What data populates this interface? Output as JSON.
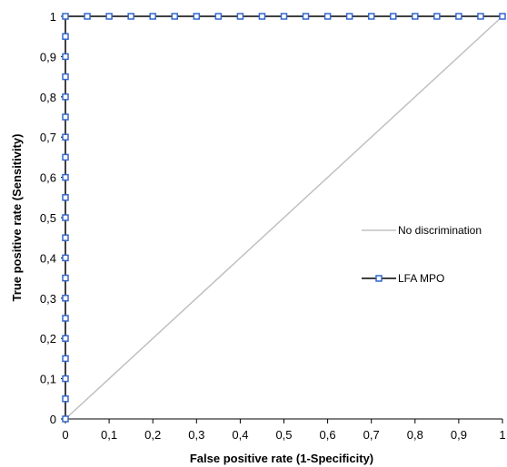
{
  "chart_data": {
    "type": "line",
    "title": "",
    "xlabel": "False positive rate (1-Specificity)",
    "ylabel": "True positive rate (Sensitivity)",
    "xlim": [
      0,
      1
    ],
    "ylim": [
      0,
      1
    ],
    "x_ticks": [
      "0",
      "0,1",
      "0,2",
      "0,3",
      "0,4",
      "0,5",
      "0,6",
      "0,7",
      "0,8",
      "0,9",
      "1"
    ],
    "y_ticks": [
      "0",
      "0,1",
      "0,2",
      "0,3",
      "0,4",
      "0,5",
      "0,6",
      "0,7",
      "0,8",
      "0,9",
      "1"
    ],
    "grid": false,
    "legend_position": "right",
    "series": [
      {
        "name": "No discrimination",
        "color": "#c0c0c0",
        "marker": "none",
        "x": [
          0,
          1
        ],
        "y": [
          0,
          1
        ]
      },
      {
        "name": "LFA MPO",
        "color": "#000000",
        "marker_color": "#3366cc",
        "marker": "square",
        "x": [
          0,
          0,
          0,
          0,
          0,
          0,
          0,
          0,
          0,
          0,
          0,
          0,
          0,
          0,
          0,
          0,
          0,
          0,
          0,
          0,
          0,
          0.05,
          0.1,
          0.15,
          0.2,
          0.25,
          0.3,
          0.35,
          0.4,
          0.45,
          0.5,
          0.55,
          0.6,
          0.65,
          0.7,
          0.75,
          0.8,
          0.85,
          0.9,
          0.95,
          1
        ],
        "y": [
          0,
          0.05,
          0.1,
          0.15,
          0.2,
          0.25,
          0.3,
          0.35,
          0.4,
          0.45,
          0.5,
          0.55,
          0.6,
          0.65,
          0.7,
          0.75,
          0.8,
          0.85,
          0.9,
          0.95,
          1,
          1,
          1,
          1,
          1,
          1,
          1,
          1,
          1,
          1,
          1,
          1,
          1,
          1,
          1,
          1,
          1,
          1,
          1,
          1,
          1
        ]
      }
    ]
  }
}
